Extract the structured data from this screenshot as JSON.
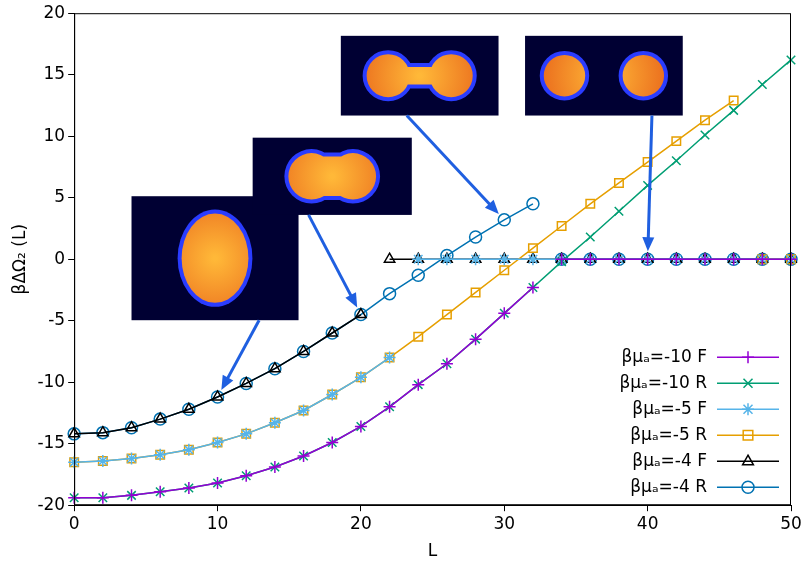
{
  "chart_data": {
    "type": "line",
    "x_label": "L",
    "y_label": "βΔΩ₂ (L)",
    "xlim": [
      0,
      50
    ],
    "ylim": [
      -20,
      20
    ],
    "xticks": [
      0,
      10,
      20,
      30,
      40,
      50
    ],
    "yticks": [
      -20,
      -15,
      -10,
      -5,
      0,
      5,
      10,
      15,
      20
    ],
    "grid": false,
    "legend": "lower right",
    "series": [
      {
        "name": "βμₐ=-10 F",
        "color": "#9400d3",
        "marker": "plus",
        "line_style": "solid",
        "x": [
          0,
          2,
          4,
          6,
          8,
          10,
          12,
          14,
          16,
          18,
          20,
          22,
          24,
          26,
          28,
          30,
          32,
          33,
          34,
          36,
          38,
          40,
          42,
          44,
          46,
          48,
          50
        ],
        "values": [
          -19.4,
          -19.4,
          -19.2,
          -18.9,
          -18.6,
          -18.2,
          -17.6,
          -16.9,
          -16.0,
          -14.9,
          -13.6,
          -12.0,
          -10.2,
          -8.5,
          -6.5,
          -4.4,
          -2.3,
          null,
          0,
          0,
          0,
          0,
          0,
          0,
          0,
          0,
          0
        ]
      },
      {
        "name": "βμₐ=-10 R",
        "color": "#009e73",
        "marker": "x",
        "line_style": "solid",
        "x": [
          0,
          2,
          4,
          6,
          8,
          10,
          12,
          14,
          16,
          18,
          20,
          22,
          24,
          26,
          28,
          30,
          32,
          34,
          36,
          38,
          40,
          42,
          44,
          46,
          48,
          50
        ],
        "values": [
          -19.4,
          -19.4,
          -19.2,
          -18.9,
          -18.6,
          -18.2,
          -17.6,
          -16.9,
          -16.0,
          -14.9,
          -13.6,
          -12.0,
          -10.2,
          -8.5,
          -6.5,
          -4.4,
          -2.3,
          -0.2,
          1.8,
          3.9,
          6.0,
          8.0,
          10.1,
          12.1,
          14.2,
          16.2
        ]
      },
      {
        "name": "βμₐ=-5 F",
        "color": "#56b4e9",
        "marker": "star",
        "line_style": "solid",
        "x": [
          0,
          2,
          4,
          6,
          8,
          10,
          12,
          14,
          16,
          18,
          20,
          22,
          23,
          24,
          26,
          28,
          30,
          32,
          34,
          36,
          38,
          40,
          42,
          44,
          46,
          48,
          50
        ],
        "values": [
          -16.5,
          -16.4,
          -16.2,
          -15.9,
          -15.5,
          -14.9,
          -14.2,
          -13.3,
          -12.3,
          -11.0,
          -9.6,
          -8.0,
          null,
          0,
          0,
          0,
          0,
          0,
          0,
          0,
          0,
          0,
          0,
          0,
          0,
          0,
          0
        ]
      },
      {
        "name": "βμₐ=-5 R",
        "color": "#e69f00",
        "marker": "square",
        "line_style": "solid",
        "x": [
          0,
          2,
          4,
          6,
          8,
          10,
          12,
          14,
          16,
          18,
          20,
          22,
          24,
          26,
          28,
          30,
          32,
          34,
          36,
          38,
          40,
          42,
          44,
          46,
          47,
          48,
          50
        ],
        "values": [
          -16.5,
          -16.4,
          -16.2,
          -15.9,
          -15.5,
          -14.9,
          -14.2,
          -13.3,
          -12.3,
          -11.0,
          -9.6,
          -8.0,
          -6.3,
          -4.5,
          -2.7,
          -0.9,
          0.9,
          2.7,
          4.5,
          6.2,
          7.9,
          9.6,
          11.3,
          12.9,
          null,
          0,
          0
        ]
      },
      {
        "name": "βμₐ=-4 F",
        "color": "#000000",
        "marker": "triangle",
        "line_style": "solid",
        "x": [
          0,
          2,
          4,
          6,
          8,
          10,
          12,
          14,
          16,
          18,
          20,
          21,
          22,
          24,
          26,
          28,
          30,
          32,
          34,
          36,
          38,
          40,
          42,
          44,
          46,
          48,
          50
        ],
        "values": [
          -14.2,
          -14.1,
          -13.7,
          -13.0,
          -12.2,
          -11.2,
          -10.1,
          -8.9,
          -7.5,
          -6.0,
          -4.5,
          null,
          0,
          0,
          0,
          0,
          0,
          0,
          0,
          0,
          0,
          0,
          0,
          0,
          0,
          0,
          0
        ]
      },
      {
        "name": "βμₐ=-4 R",
        "color": "#0072b2",
        "marker": "circle",
        "line_style": "solid",
        "x": [
          0,
          2,
          4,
          6,
          8,
          10,
          12,
          14,
          16,
          18,
          20,
          22,
          24,
          26,
          28,
          30,
          32,
          33,
          34,
          36,
          38,
          40,
          42,
          44,
          46,
          48,
          50
        ],
        "values": [
          -14.2,
          -14.1,
          -13.7,
          -13.0,
          -12.2,
          -11.2,
          -10.1,
          -8.9,
          -7.5,
          -6.0,
          -4.5,
          -2.8,
          -1.3,
          0.3,
          1.8,
          3.2,
          4.5,
          null,
          0,
          0,
          0,
          0,
          0,
          0,
          0,
          0,
          0
        ]
      }
    ]
  }
}
